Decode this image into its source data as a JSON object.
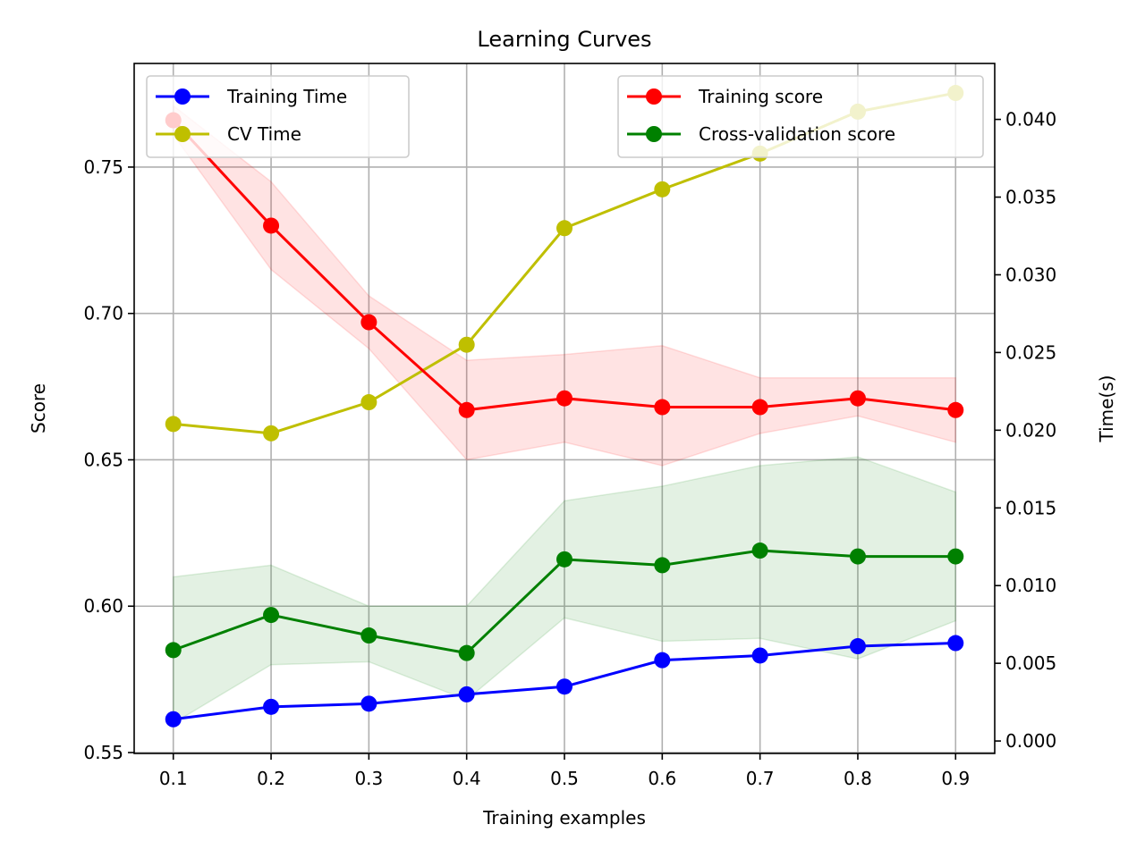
{
  "chart_data": {
    "type": "line",
    "title": "Learning Curves",
    "xlabel": "Training examples",
    "ylabel": "Score",
    "y2label": "Time(s)",
    "x": [
      0.1,
      0.2,
      0.3,
      0.4,
      0.5,
      0.6,
      0.7,
      0.8,
      0.9
    ],
    "x_ticks": [
      "0.1",
      "0.2",
      "0.3",
      "0.4",
      "0.5",
      "0.6",
      "0.7",
      "0.8",
      "0.9"
    ],
    "xlim": [
      0.06,
      0.94
    ],
    "ylim": [
      0.5497,
      0.7854
    ],
    "y_ticks": [
      "0.55",
      "0.60",
      "0.65",
      "0.70",
      "0.75"
    ],
    "y_tick_values": [
      0.55,
      0.6,
      0.65,
      0.7,
      0.75
    ],
    "y2lim": [
      -0.0008,
      0.0436
    ],
    "y2_ticks": [
      "0.000",
      "0.005",
      "0.010",
      "0.015",
      "0.020",
      "0.025",
      "0.030",
      "0.035",
      "0.040"
    ],
    "y2_tick_values": [
      0.0,
      0.005,
      0.01,
      0.015,
      0.02,
      0.025,
      0.03,
      0.035,
      0.04
    ],
    "grid": true,
    "score_series": [
      {
        "name": "Training score",
        "color": "#ff0000",
        "band_color": "#ff0000",
        "values": [
          0.766,
          0.73,
          0.697,
          0.667,
          0.671,
          0.668,
          0.668,
          0.671,
          0.667
        ],
        "lower": [
          0.761,
          0.715,
          0.688,
          0.65,
          0.656,
          0.648,
          0.659,
          0.665,
          0.656
        ],
        "upper": [
          0.771,
          0.745,
          0.706,
          0.684,
          0.686,
          0.689,
          0.678,
          0.678,
          0.678
        ]
      },
      {
        "name": "Cross-validation score",
        "color": "#008000",
        "band_color": "#008000",
        "values": [
          0.585,
          0.597,
          0.59,
          0.584,
          0.616,
          0.614,
          0.619,
          0.617,
          0.617
        ],
        "lower": [
          0.56,
          0.58,
          0.581,
          0.568,
          0.596,
          0.588,
          0.589,
          0.582,
          0.595
        ],
        "upper": [
          0.61,
          0.614,
          0.6,
          0.6,
          0.636,
          0.641,
          0.648,
          0.651,
          0.639
        ]
      }
    ],
    "time_series": [
      {
        "name": "Training Time",
        "color": "#0000ff",
        "values": [
          0.0014,
          0.0022,
          0.0024,
          0.003,
          0.0035,
          0.0052,
          0.0055,
          0.0061,
          0.0063
        ]
      },
      {
        "name": "CV Time",
        "color": "#bfbf00",
        "values": [
          0.0204,
          0.0198,
          0.0218,
          0.0255,
          0.033,
          0.0355,
          0.0378,
          0.0405,
          0.0417
        ]
      }
    ],
    "legend_left": [
      "Training Time",
      "CV Time"
    ],
    "legend_right": [
      "Training score",
      "Cross-validation score"
    ],
    "legend_left_placement": "upper-left",
    "legend_right_placement": "upper-right"
  }
}
